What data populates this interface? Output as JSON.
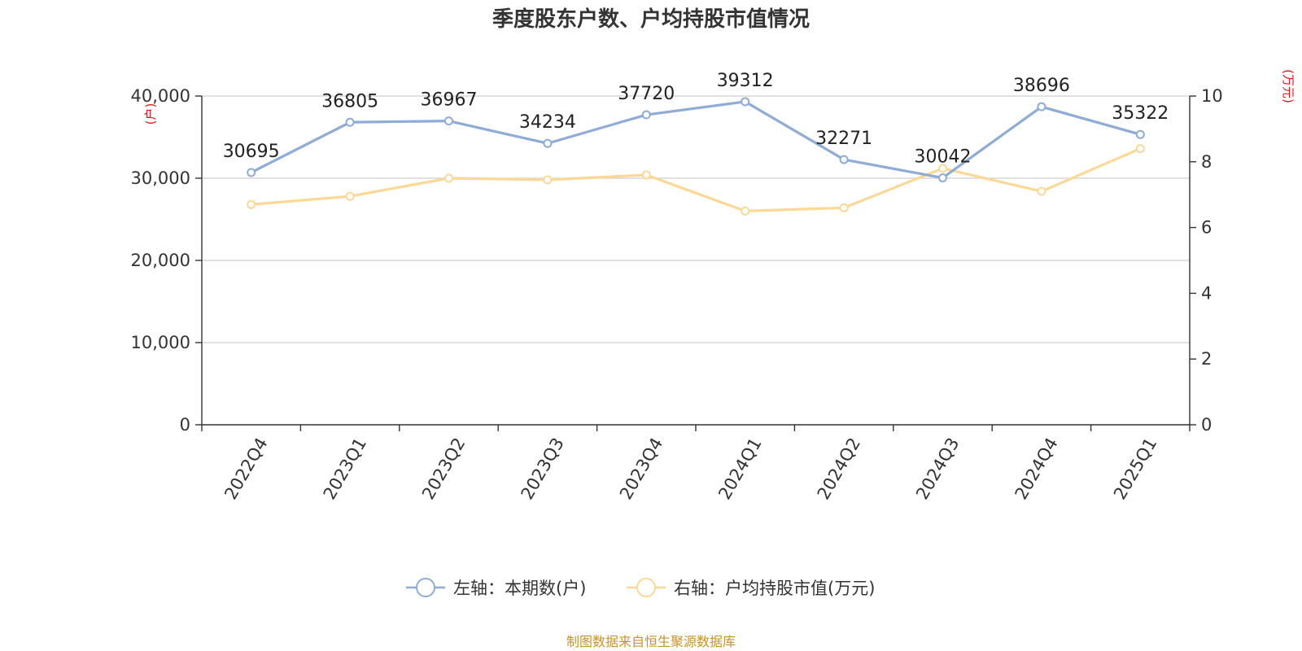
{
  "chart_data": {
    "type": "line",
    "title": "季度股东户数、户均持股市值情况",
    "categories": [
      "2022Q4",
      "2023Q1",
      "2023Q2",
      "2023Q3",
      "2023Q4",
      "2024Q1",
      "2024Q2",
      "2024Q3",
      "2024Q4",
      "2025Q1"
    ],
    "series": [
      {
        "name": "左轴：本期数(户)",
        "axis": "left",
        "color": "#8eacd6",
        "values": [
          30695,
          36805,
          36967,
          34234,
          37720,
          39312,
          32271,
          30042,
          38696,
          35322
        ],
        "show_labels": true
      },
      {
        "name": "右轴：户均持股市值(万元)",
        "axis": "right",
        "color": "#fad997",
        "values": [
          6.7,
          6.95,
          7.5,
          7.45,
          7.6,
          6.5,
          6.6,
          7.8,
          7.1,
          8.4
        ],
        "show_labels": false
      }
    ],
    "left_axis": {
      "unit": "(户)",
      "ylim": [
        0,
        40000
      ],
      "ticks": [
        0,
        10000,
        20000,
        30000,
        40000
      ],
      "tick_labels": [
        "0",
        "10,000",
        "20,000",
        "30,000",
        "40,000"
      ]
    },
    "right_axis": {
      "unit": "(万元)",
      "ylim": [
        0,
        10
      ],
      "ticks": [
        0,
        2,
        4,
        6,
        8,
        10
      ],
      "tick_labels": [
        "0",
        "2",
        "4",
        "6",
        "8",
        "10"
      ]
    },
    "grid": true,
    "legend_position": "bottom",
    "source": "制图数据来自恒生聚源数据库"
  }
}
